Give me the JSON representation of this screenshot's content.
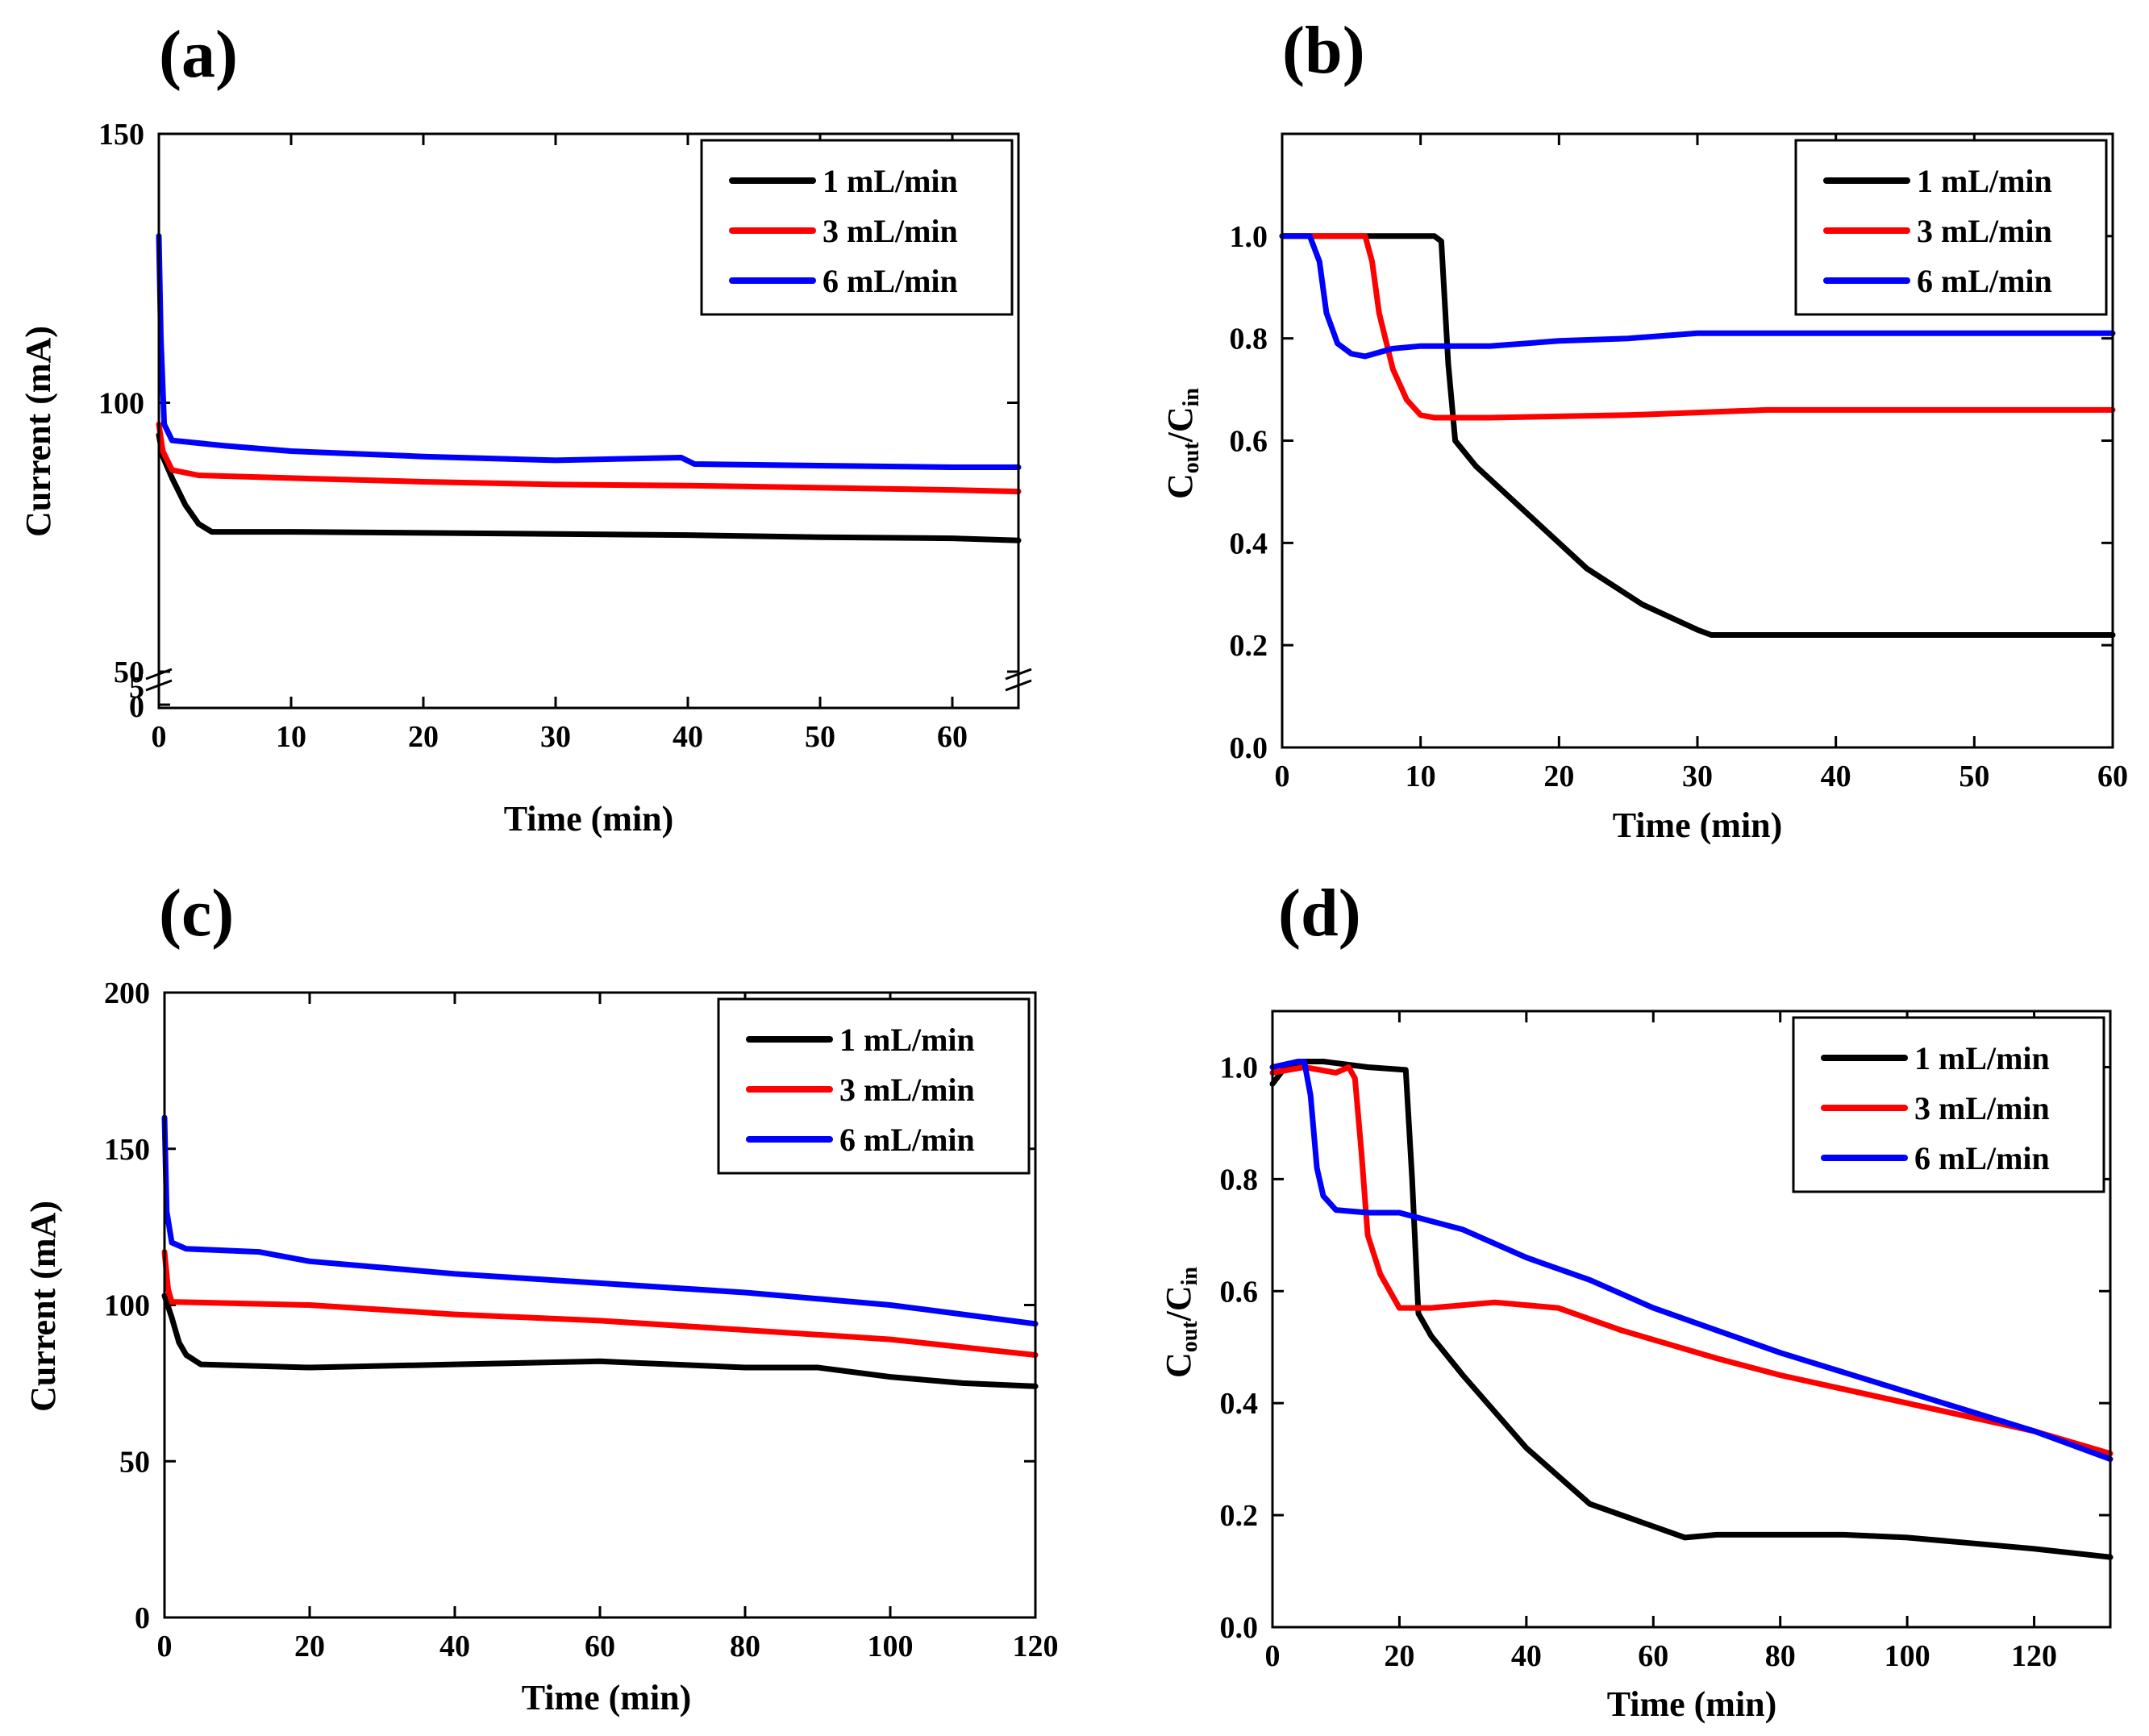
{
  "chart_data": [
    {
      "id": "a",
      "type": "line",
      "panel_label": "(a)",
      "xlabel": "Time (min)",
      "ylabel": "Current (mA)",
      "xlim": [
        0,
        65
      ],
      "ylim": [
        50,
        150
      ],
      "xticks": [
        0,
        10,
        20,
        30,
        40,
        50,
        60
      ],
      "yticks": [
        50,
        100,
        150
      ],
      "broken_axis": true,
      "broken_lower_ticks": [
        "5",
        "0"
      ],
      "legend": "top-right",
      "series": [
        {
          "name": "1 mL/min",
          "color": "#000000",
          "points": [
            [
              0,
              94
            ],
            [
              0.3,
              90
            ],
            [
              1,
              86
            ],
            [
              2,
              81
            ],
            [
              3,
              77.5
            ],
            [
              4,
              76
            ],
            [
              10,
              76
            ],
            [
              20,
              75.8
            ],
            [
              30,
              75.6
            ],
            [
              40,
              75.4
            ],
            [
              50,
              75
            ],
            [
              60,
              74.8
            ],
            [
              65,
              74.4
            ]
          ]
        },
        {
          "name": "3 mL/min",
          "color": "#ff0000",
          "points": [
            [
              0,
              96
            ],
            [
              0.3,
              91
            ],
            [
              1,
              87.5
            ],
            [
              3,
              86.5
            ],
            [
              10,
              86
            ],
            [
              20,
              85.3
            ],
            [
              30,
              84.8
            ],
            [
              40,
              84.6
            ],
            [
              50,
              84.2
            ],
            [
              60,
              83.8
            ],
            [
              65,
              83.5
            ]
          ]
        },
        {
          "name": "6 mL/min",
          "color": "#0000ff",
          "points": [
            [
              0,
              131
            ],
            [
              0.15,
              112
            ],
            [
              0.4,
              96
            ],
            [
              1,
              93
            ],
            [
              5,
              92
            ],
            [
              10,
              91
            ],
            [
              20,
              90
            ],
            [
              30,
              89.3
            ],
            [
              39.5,
              89.8
            ],
            [
              40.5,
              88.6
            ],
            [
              50,
              88.3
            ],
            [
              60,
              88
            ],
            [
              65,
              88
            ]
          ]
        }
      ]
    },
    {
      "id": "b",
      "type": "line",
      "panel_label": "(b)",
      "xlabel": "Time (min)",
      "ylabel": "Cout/Cin",
      "ylabel_main": "C",
      "ylabel_sub1": "out",
      "ylabel_mid": "/C",
      "ylabel_sub2": "in",
      "xlim": [
        0,
        60
      ],
      "ylim": [
        0,
        1.2
      ],
      "xticks": [
        0,
        10,
        20,
        30,
        40,
        50,
        60
      ],
      "yticks": [
        0.0,
        0.2,
        0.4,
        0.6,
        0.8,
        1.0
      ],
      "legend": "top-right",
      "series": [
        {
          "name": "1 mL/min",
          "color": "#000000",
          "points": [
            [
              0,
              1.0
            ],
            [
              8,
              1.0
            ],
            [
              11,
              1.0
            ],
            [
              11.5,
              0.99
            ],
            [
              12,
              0.75
            ],
            [
              12.5,
              0.6
            ],
            [
              14,
              0.55
            ],
            [
              18,
              0.45
            ],
            [
              22,
              0.35
            ],
            [
              26,
              0.28
            ],
            [
              30,
              0.23
            ],
            [
              31,
              0.22
            ],
            [
              40,
              0.22
            ],
            [
              50,
              0.22
            ],
            [
              60,
              0.22
            ]
          ]
        },
        {
          "name": "3 mL/min",
          "color": "#ff0000",
          "points": [
            [
              0,
              1.0
            ],
            [
              6,
              1.0
            ],
            [
              6.5,
              0.95
            ],
            [
              7,
              0.85
            ],
            [
              8,
              0.74
            ],
            [
              9,
              0.68
            ],
            [
              10,
              0.65
            ],
            [
              11,
              0.645
            ],
            [
              15,
              0.645
            ],
            [
              25,
              0.65
            ],
            [
              30,
              0.655
            ],
            [
              35,
              0.66
            ],
            [
              40,
              0.66
            ],
            [
              50,
              0.66
            ],
            [
              60,
              0.66
            ]
          ]
        },
        {
          "name": "6 mL/min",
          "color": "#0000ff",
          "points": [
            [
              0,
              1.0
            ],
            [
              2,
              1.0
            ],
            [
              2.7,
              0.95
            ],
            [
              3.2,
              0.85
            ],
            [
              4,
              0.79
            ],
            [
              5,
              0.77
            ],
            [
              6,
              0.765
            ],
            [
              8,
              0.78
            ],
            [
              10,
              0.785
            ],
            [
              15,
              0.785
            ],
            [
              20,
              0.795
            ],
            [
              25,
              0.8
            ],
            [
              30,
              0.81
            ],
            [
              35,
              0.81
            ],
            [
              40,
              0.81
            ],
            [
              50,
              0.81
            ],
            [
              60,
              0.81
            ]
          ]
        }
      ]
    },
    {
      "id": "c",
      "type": "line",
      "panel_label": "(c)",
      "xlabel": "Time (min)",
      "ylabel": "Current (mA)",
      "xlim": [
        0,
        120
      ],
      "ylim": [
        0,
        200
      ],
      "xticks": [
        0,
        20,
        40,
        60,
        80,
        100,
        120
      ],
      "yticks": [
        0,
        50,
        100,
        150,
        200
      ],
      "legend": "top-right",
      "series": [
        {
          "name": "1 mL/min",
          "color": "#000000",
          "points": [
            [
              0,
              103
            ],
            [
              1,
              96
            ],
            [
              2,
              88
            ],
            [
              3,
              84
            ],
            [
              5,
              81
            ],
            [
              20,
              80
            ],
            [
              40,
              81
            ],
            [
              60,
              82
            ],
            [
              80,
              80
            ],
            [
              90,
              80
            ],
            [
              100,
              77
            ],
            [
              110,
              75
            ],
            [
              120,
              74
            ]
          ]
        },
        {
          "name": "3 mL/min",
          "color": "#ff0000",
          "points": [
            [
              0,
              117
            ],
            [
              0.5,
              105
            ],
            [
              1,
              101
            ],
            [
              20,
              100
            ],
            [
              40,
              97
            ],
            [
              60,
              95
            ],
            [
              80,
              92
            ],
            [
              100,
              89
            ],
            [
              120,
              84
            ]
          ]
        },
        {
          "name": "6 mL/min",
          "color": "#0000ff",
          "points": [
            [
              0,
              160
            ],
            [
              0.3,
              130
            ],
            [
              1,
              120
            ],
            [
              3,
              118
            ],
            [
              13,
              117
            ],
            [
              20,
              114
            ],
            [
              40,
              110
            ],
            [
              60,
              107
            ],
            [
              80,
              104
            ],
            [
              100,
              100
            ],
            [
              110,
              97
            ],
            [
              120,
              94
            ]
          ]
        }
      ]
    },
    {
      "id": "d",
      "type": "line",
      "panel_label": "(d)",
      "xlabel": "Time (min)",
      "ylabel": "Cout/Cin",
      "ylabel_main": "C",
      "ylabel_sub1": "out",
      "ylabel_mid": "/C",
      "ylabel_sub2": "in",
      "xlim": [
        0,
        132
      ],
      "ylim": [
        0,
        1.1
      ],
      "xticks": [
        0,
        20,
        40,
        60,
        80,
        100,
        120
      ],
      "yticks": [
        0.0,
        0.2,
        0.4,
        0.6,
        0.8,
        1.0
      ],
      "legend": "top-right",
      "series": [
        {
          "name": "1 mL/min",
          "color": "#000000",
          "points": [
            [
              0,
              0.97
            ],
            [
              2,
              1.0
            ],
            [
              5,
              1.01
            ],
            [
              8,
              1.01
            ],
            [
              15,
              1.0
            ],
            [
              21,
              0.995
            ],
            [
              22,
              0.8
            ],
            [
              23,
              0.56
            ],
            [
              25,
              0.52
            ],
            [
              30,
              0.45
            ],
            [
              40,
              0.32
            ],
            [
              50,
              0.22
            ],
            [
              60,
              0.18
            ],
            [
              65,
              0.16
            ],
            [
              70,
              0.165
            ],
            [
              80,
              0.165
            ],
            [
              90,
              0.165
            ],
            [
              100,
              0.16
            ],
            [
              110,
              0.15
            ],
            [
              120,
              0.14
            ],
            [
              132,
              0.125
            ]
          ]
        },
        {
          "name": "3 mL/min",
          "color": "#ff0000",
          "points": [
            [
              0,
              0.99
            ],
            [
              5,
              1.0
            ],
            [
              10,
              0.99
            ],
            [
              12,
              1.0
            ],
            [
              13,
              0.98
            ],
            [
              14,
              0.85
            ],
            [
              15,
              0.7
            ],
            [
              17,
              0.63
            ],
            [
              20,
              0.57
            ],
            [
              25,
              0.57
            ],
            [
              35,
              0.58
            ],
            [
              45,
              0.57
            ],
            [
              55,
              0.53
            ],
            [
              70,
              0.48
            ],
            [
              80,
              0.45
            ],
            [
              100,
              0.4
            ],
            [
              120,
              0.35
            ],
            [
              132,
              0.31
            ]
          ]
        },
        {
          "name": "6 mL/min",
          "color": "#0000ff",
          "points": [
            [
              0,
              1.0
            ],
            [
              4,
              1.01
            ],
            [
              5,
              1.01
            ],
            [
              6,
              0.95
            ],
            [
              7,
              0.82
            ],
            [
              8,
              0.77
            ],
            [
              10,
              0.745
            ],
            [
              15,
              0.74
            ],
            [
              20,
              0.74
            ],
            [
              30,
              0.71
            ],
            [
              40,
              0.66
            ],
            [
              50,
              0.62
            ],
            [
              60,
              0.57
            ],
            [
              70,
              0.53
            ],
            [
              80,
              0.49
            ],
            [
              100,
              0.42
            ],
            [
              120,
              0.35
            ],
            [
              132,
              0.3
            ]
          ]
        }
      ]
    }
  ]
}
